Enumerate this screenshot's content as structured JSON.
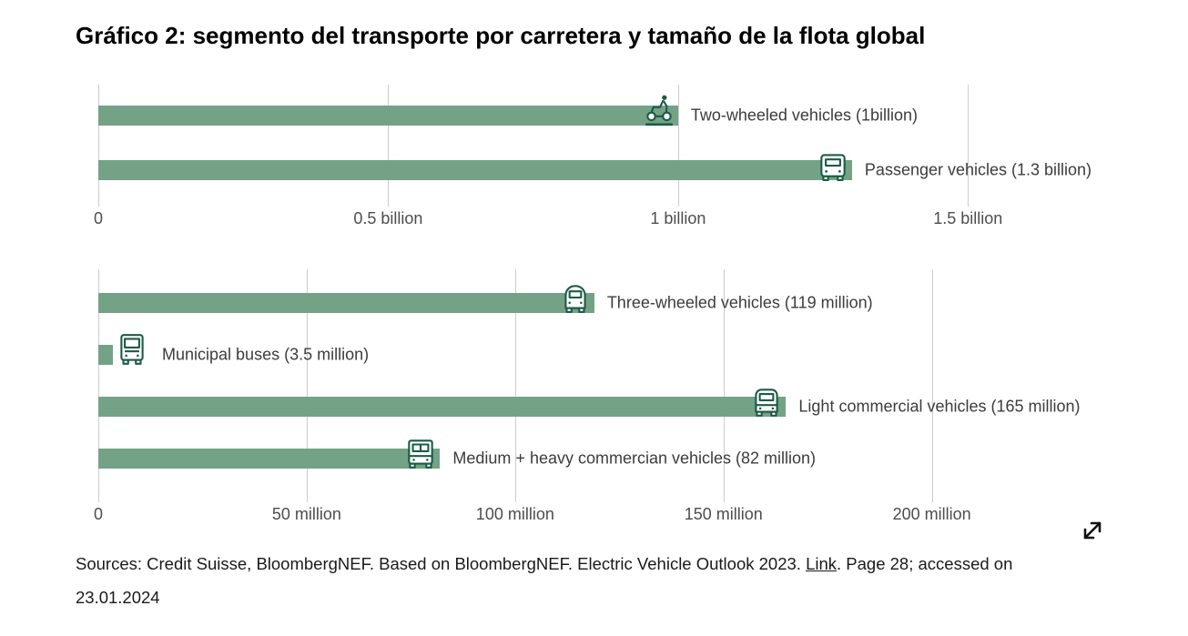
{
  "title": "Gráfico 2: segmento del transporte por carretera y tamaño de la flota global",
  "colors": {
    "bar": "#74a287",
    "icon_stroke": "#1d5b45",
    "gridline": "#cccccc",
    "axis_text": "#4d4d4d",
    "label_text": "#3c3c3c"
  },
  "chart_data": [
    {
      "type": "bar",
      "orientation": "horizontal",
      "unit": "billion",
      "xlim": [
        0,
        1.79
      ],
      "grid": true,
      "ticks": [
        {
          "value": 0,
          "label": "0"
        },
        {
          "value": 0.5,
          "label": "0.5 billion"
        },
        {
          "value": 1,
          "label": "1 billion"
        },
        {
          "value": 1.5,
          "label": "1.5 billion"
        }
      ],
      "bars": [
        {
          "label": "Two-wheeled vehicles (1billion)",
          "value": 1.0,
          "icon": "scooter-icon"
        },
        {
          "label": "Passenger vehicles (1.3 billion)",
          "value": 1.3,
          "icon": "car-icon"
        }
      ]
    },
    {
      "type": "bar",
      "orientation": "horizontal",
      "unit": "million",
      "xlim": [
        0,
        249
      ],
      "grid": true,
      "ticks": [
        {
          "value": 0,
          "label": "0"
        },
        {
          "value": 50,
          "label": "50 million"
        },
        {
          "value": 100,
          "label": "100 million"
        },
        {
          "value": 150,
          "label": "150 million"
        },
        {
          "value": 200,
          "label": "200 million"
        }
      ],
      "bars": [
        {
          "label": "Three-wheeled vehicles (119 million)",
          "value": 119,
          "icon": "three-wheeler-icon"
        },
        {
          "label": "Municipal buses (3.5 million)",
          "value": 3.5,
          "icon": "bus-icon"
        },
        {
          "label": "Light commercial vehicles (165 million)",
          "value": 165,
          "icon": "van-icon"
        },
        {
          "label": "Medium + heavy commercian vehicles (82 million)",
          "value": 82,
          "icon": "truck-icon"
        }
      ]
    }
  ],
  "expand_icon": "expand-diagonal-icon",
  "source": {
    "prefix": "Sources: Credit Suisse, BloombergNEF. Based on BloombergNEF. Electric Vehicle Outlook 2023. ",
    "link": "Link",
    "suffix": ". Page 28; accessed on",
    "line2": "23.01.2024"
  }
}
